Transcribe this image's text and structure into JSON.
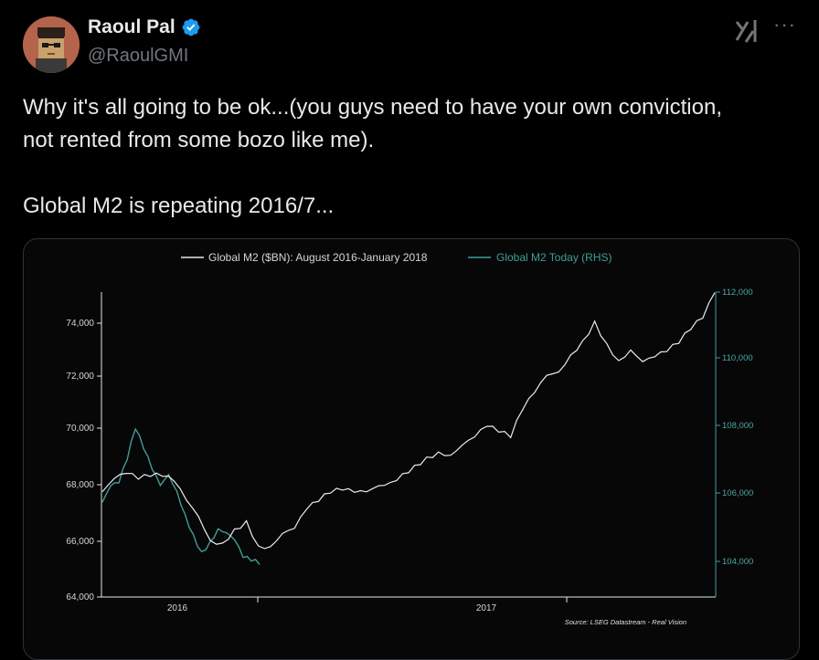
{
  "author": {
    "name": "Raoul Pal",
    "handle": "@RaoulGMI",
    "verified": true
  },
  "icons": {
    "avatar": "pixel-art-avatar",
    "badge": "verified-badge-icon",
    "grok": "grok-icon",
    "more": "more-options-icon"
  },
  "header": {
    "more_glyph": "···"
  },
  "tweet": {
    "line1": "Why it's all going to be ok...(you guys need to have your own conviction,",
    "line2": "not rented from some bozo like me).",
    "line3": "Global M2 is repeating 2016/7..."
  },
  "colors": {
    "accent": "#1d9bf0",
    "series_2016": "#e9e9e9",
    "series_today": "#3f9e98"
  },
  "chart_data": {
    "type": "line",
    "legend_position": "top",
    "grid": false,
    "x_ticks": [
      "2016",
      "2017"
    ],
    "y_left": {
      "ylim": [
        64000,
        75000
      ],
      "ticks": [
        "64,000",
        "66,000",
        "68,000",
        "70,000",
        "72,000",
        "74,000"
      ]
    },
    "y_right": {
      "ylim": [
        103000,
        112000
      ],
      "ticks": [
        "104,000",
        "106,000",
        "108,000",
        "110,000",
        "112,000"
      ]
    },
    "series": [
      {
        "name": "Global M2 ($BN): August 2016-January 2018",
        "axis": "left",
        "values": [
          67800,
          68300,
          68500,
          68300,
          68400,
          68400,
          68200,
          67500,
          66900,
          66000,
          65900,
          66400,
          66700,
          65800,
          65800,
          66300,
          66500,
          67200,
          67500,
          67800,
          67900,
          67800,
          67800,
          68000,
          68100,
          68400,
          68700,
          69000,
          69200,
          69100,
          69500,
          69800,
          70200,
          70000,
          69800,
          70800,
          71400,
          72000,
          72100,
          72700,
          73200,
          73900,
          73100,
          72500,
          72900,
          72500,
          72700,
          72900,
          73200,
          73700,
          74100,
          75000
        ]
      },
      {
        "name": "Global M2 Today (RHS)",
        "axis": "right",
        "values": [
          105800,
          106300,
          106400,
          107100,
          108000,
          107400,
          106800,
          106300,
          106600,
          106100,
          105400,
          104800,
          104300,
          104600,
          105000,
          104900,
          104700,
          104200,
          104100,
          104000
        ]
      }
    ],
    "source": "Source: LSEG Datastream - Real Vision"
  }
}
